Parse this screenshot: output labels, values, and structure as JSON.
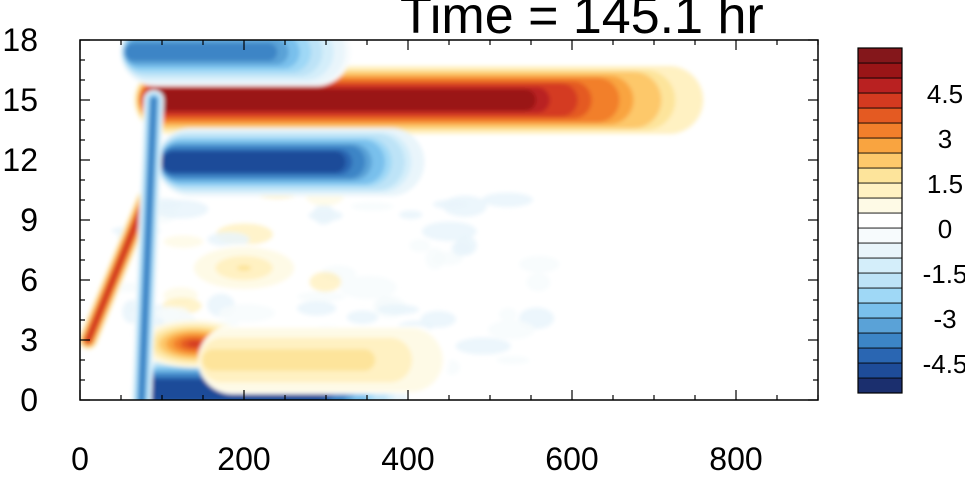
{
  "chart_data": {
    "type": "heatmap",
    "title": "Time = 145.1 hr",
    "xlabel": "",
    "ylabel": "",
    "xlim": [
      0,
      900
    ],
    "ylim": [
      0,
      18
    ],
    "x_ticks": [
      0,
      200,
      400,
      600,
      800
    ],
    "y_ticks": [
      0,
      3,
      6,
      9,
      12,
      15,
      18
    ],
    "colorbar": {
      "position": "right",
      "levels": [
        -5.5,
        -5,
        -4.5,
        -4,
        -3.5,
        -3,
        -2.5,
        -2,
        -1.5,
        -1,
        -0.5,
        0,
        0.5,
        1,
        1.5,
        2,
        2.5,
        3,
        3.5,
        4,
        4.5,
        5,
        5.5
      ],
      "tick_labels": [
        "4.5",
        "3",
        "1.5",
        "0",
        "-1.5",
        "-3",
        "-4.5"
      ],
      "tick_values": [
        4.5,
        3,
        1.5,
        0,
        -1.5,
        -3,
        -4.5
      ],
      "colors": [
        "#1b2f6e",
        "#1e4c99",
        "#2a66b2",
        "#3c85c6",
        "#5aa2d7",
        "#79c0ec",
        "#9fd8f6",
        "#bde3f7",
        "#d4eefa",
        "#e9f5fb",
        "#f7fbfd",
        "#ffffff",
        "#fefae6",
        "#fff1c2",
        "#fde49b",
        "#fdc86b",
        "#f9a440",
        "#f27f2b",
        "#e45a22",
        "#d43a20",
        "#b92121",
        "#9a1517",
        "#84171b"
      ]
    },
    "features": [
      {
        "kind": "band",
        "sign": "positive",
        "x": [
          80,
          760
        ],
        "y_center": 15.0,
        "peak": 5.5,
        "note": "dark red band"
      },
      {
        "kind": "band",
        "sign": "negative",
        "x": [
          100,
          420
        ],
        "y_center": 11.9,
        "peak": -5.5
      },
      {
        "kind": "band",
        "sign": "negative",
        "x": [
          55,
          330
        ],
        "y_center": 17.4,
        "peak": -4.0
      },
      {
        "kind": "band",
        "sign": "negative",
        "x": [
          75,
          400
        ],
        "y_center": 0.5,
        "peak": -5.5
      },
      {
        "kind": "blob",
        "sign": "positive",
        "x_center": 140,
        "y_center": 2.8,
        "peak": 4.5
      },
      {
        "kind": "band",
        "sign": "positive",
        "x": [
          150,
          450
        ],
        "y_center": 2.0,
        "peak": 1.5
      },
      {
        "kind": "blob",
        "sign": "positive",
        "x_center": 200,
        "y_center": 6.6,
        "peak": 1.5
      },
      {
        "kind": "streak",
        "sign": "positive",
        "x": [
          10,
          80
        ],
        "y": [
          3,
          10
        ],
        "peak": 4.5
      },
      {
        "kind": "streak",
        "sign": "negative",
        "x": [
          75,
          90
        ],
        "y": [
          0,
          15
        ],
        "peak": -4.5
      }
    ]
  }
}
